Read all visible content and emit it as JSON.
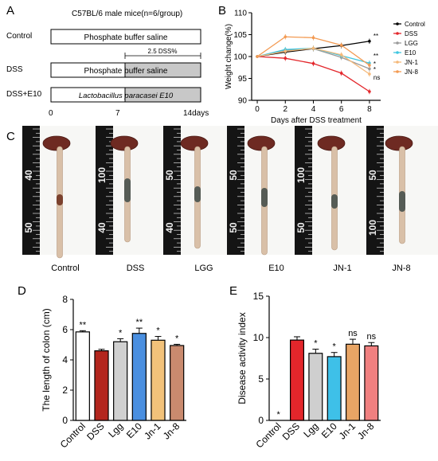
{
  "panels": {
    "A": {
      "letter": "A",
      "title": "C57BL/6 male mice(n=6/group)",
      "groups": [
        {
          "label": "Control",
          "bar_text": "Phosphate buffer saline"
        },
        {
          "label": "DSS",
          "bar_text": "Phosphate buffer saline",
          "dss_text": "2.5 DSS%"
        },
        {
          "label": "DSS+E10",
          "bar_text": "Lactobacillus paracasei E10"
        }
      ],
      "timeline": [
        "0",
        "7",
        "14days"
      ]
    },
    "B": {
      "letter": "B",
      "chart_data": {
        "type": "line",
        "xlabel": "Days after DSS treatment",
        "ylabel": "Weight change(%)",
        "x": [
          0,
          2,
          4,
          6,
          8
        ],
        "xlim": [
          -0.4,
          8.8
        ],
        "ylim": [
          90,
          110
        ],
        "yticks": [
          90,
          95,
          100,
          105,
          110
        ],
        "series": [
          {
            "name": "Control",
            "color": "#000000",
            "values": [
              100,
              101.0,
              101.8,
              102.5,
              103.5
            ]
          },
          {
            "name": "DSS",
            "color": "#e3262b",
            "values": [
              100,
              99.6,
              98.4,
              96.2,
              92.0
            ]
          },
          {
            "name": "LGG",
            "color": "#9a9a9a",
            "values": [
              100,
              101.4,
              101.8,
              99.8,
              97.2
            ]
          },
          {
            "name": "E10",
            "color": "#3ec6e0",
            "values": [
              100,
              101.6,
              101.9,
              100.2,
              98.5
            ]
          },
          {
            "name": "JN-1",
            "color": "#f5b878",
            "values": [
              100,
              101.2,
              101.9,
              100.4,
              96.0
            ]
          },
          {
            "name": "JN-8",
            "color": "#f39a52",
            "values": [
              100,
              104.5,
              104.3,
              102.6,
              98.0
            ]
          }
        ],
        "sig": [
          "**",
          "**",
          "*",
          "*",
          "ns"
        ],
        "legend_position": "right"
      }
    },
    "C": {
      "letter": "C",
      "labels": [
        "Control",
        "DSS",
        "LGG",
        "E10",
        "JN-1",
        "JN-8"
      ],
      "ruler_marks": [
        "40",
        "50",
        "100",
        "40",
        "50",
        "40",
        "50",
        "50",
        "100",
        "50",
        "50",
        "100"
      ]
    },
    "D": {
      "letter": "D",
      "chart_data": {
        "type": "bar",
        "ylabel": "The length of colon (cm)",
        "categories": [
          "Control",
          "DSS",
          "Lgg",
          "E10",
          "Jn-1",
          "Jn-8"
        ],
        "values": [
          5.85,
          4.6,
          5.2,
          5.75,
          5.3,
          4.95
        ],
        "errors": [
          0.08,
          0.1,
          0.2,
          0.35,
          0.25,
          0.08
        ],
        "sig": [
          "**",
          "",
          "*",
          "**",
          "*",
          "*"
        ],
        "colors": [
          "#ffffff",
          "#b3261e",
          "#d0d0d0",
          "#4a8fe0",
          "#f2c27a",
          "#c98a6e"
        ],
        "ylim": [
          0,
          8
        ],
        "yticks": [
          0,
          2,
          4,
          6,
          8
        ]
      }
    },
    "E": {
      "letter": "E",
      "chart_data": {
        "type": "bar",
        "ylabel": "Disease activity index",
        "categories": [
          "Control",
          "DSS",
          "Lgg",
          "E10",
          "Jn-1",
          "Jn-8"
        ],
        "values": [
          0,
          9.7,
          8.1,
          7.7,
          9.2,
          9.0
        ],
        "errors": [
          0,
          0.4,
          0.5,
          0.5,
          0.6,
          0.4
        ],
        "sig": [
          "*",
          "",
          "*",
          "*",
          "ns",
          "ns"
        ],
        "colors": [
          "#ffffff",
          "#e3262b",
          "#cfcfcf",
          "#3ec0e8",
          "#e8a565",
          "#f08080"
        ],
        "ylim": [
          0,
          15
        ],
        "yticks": [
          0,
          5,
          10,
          15
        ]
      }
    }
  }
}
